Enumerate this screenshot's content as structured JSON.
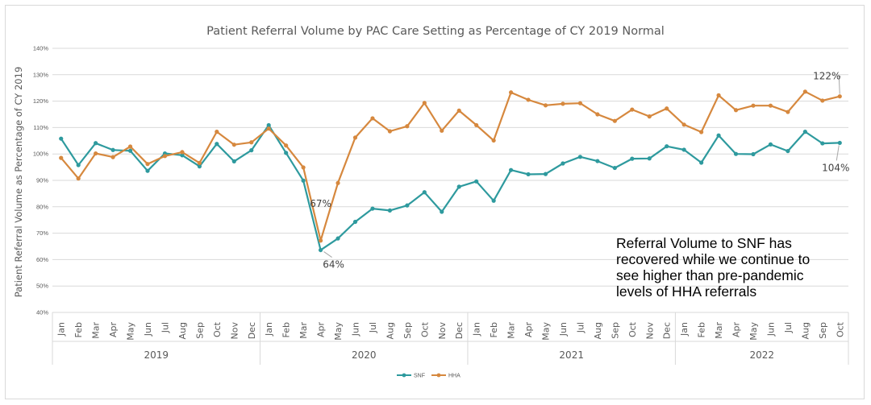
{
  "chart_data": {
    "type": "line",
    "title": "Patient Referral Volume by PAC Care Setting as Percentage of CY 2019 Normal",
    "ylabel": "Patient Referral Volume as Percentage of CY 2019",
    "xlabel": "",
    "ylim": [
      40,
      140
    ],
    "yticks": [
      "40%",
      "50%",
      "60%",
      "70%",
      "80%",
      "90%",
      "100%",
      "110%",
      "120%",
      "130%",
      "140%"
    ],
    "grid": true,
    "legend_position": "bottom",
    "months": [
      "Jan",
      "Feb",
      "Mar",
      "Apr",
      "May",
      "Jun",
      "Jul",
      "Aug",
      "Sep",
      "Oct",
      "Nov",
      "Dec",
      "Jan",
      "Feb",
      "Mar",
      "Apr",
      "May",
      "Jun",
      "Jul",
      "Aug",
      "Sep",
      "Oct",
      "Nov",
      "Dec",
      "Jan",
      "Feb",
      "Mar",
      "Apr",
      "May",
      "Jun",
      "Jul",
      "Aug",
      "Sep",
      "Oct",
      "Nov",
      "Dec",
      "Jan",
      "Feb",
      "Mar",
      "Apr",
      "May",
      "Jun",
      "Jul",
      "Aug",
      "Sep",
      "Oct"
    ],
    "years": [
      {
        "label": "2019",
        "count": 12
      },
      {
        "label": "2020",
        "count": 12
      },
      {
        "label": "2021",
        "count": 12
      },
      {
        "label": "2022",
        "count": 10
      }
    ],
    "series": [
      {
        "name": "SNF",
        "color": "#2e9a9e",
        "values": [
          105.8,
          95.8,
          104.1,
          101.5,
          101.2,
          93.6,
          100.2,
          99.5,
          95.3,
          103.8,
          97.2,
          101.4,
          110.9,
          100.4,
          89.9,
          63.6,
          68.0,
          74.3,
          79.3,
          78.6,
          80.5,
          85.5,
          78.1,
          87.6,
          89.6,
          82.3,
          93.9,
          92.3,
          92.4,
          96.4,
          98.9,
          97.3,
          94.7,
          98.2,
          98.3,
          102.9,
          101.6,
          96.7,
          107.0,
          100.0,
          99.9,
          103.6,
          101.1,
          108.4,
          104.0,
          104.2
        ]
      },
      {
        "name": "HHA",
        "color": "#d6883e",
        "values": [
          98.5,
          90.7,
          100.2,
          98.8,
          102.8,
          96.2,
          99.2,
          100.7,
          96.6,
          108.4,
          103.5,
          104.4,
          109.6,
          103.2,
          94.9,
          67.2,
          89.0,
          106.2,
          113.5,
          108.6,
          110.5,
          119.3,
          108.8,
          116.4,
          110.9,
          105.1,
          123.3,
          120.5,
          118.4,
          119.0,
          119.2,
          115.0,
          112.5,
          116.8,
          114.2,
          117.2,
          111.1,
          108.3,
          122.2,
          116.6,
          118.3,
          118.3,
          115.9,
          123.6,
          120.2,
          121.8
        ]
      }
    ],
    "annotations": [
      {
        "text": "67%",
        "series": "HHA",
        "index": 15
      },
      {
        "text": "64%",
        "series": "SNF",
        "index": 15
      },
      {
        "text": "122%",
        "series": "HHA",
        "index": 45
      },
      {
        "text": "104%",
        "series": "SNF",
        "index": 45
      }
    ],
    "note": "Referral Volume to SNF has\nrecovered while we continue to\nsee higher than pre-pandemic\nlevels of HHA referrals"
  }
}
